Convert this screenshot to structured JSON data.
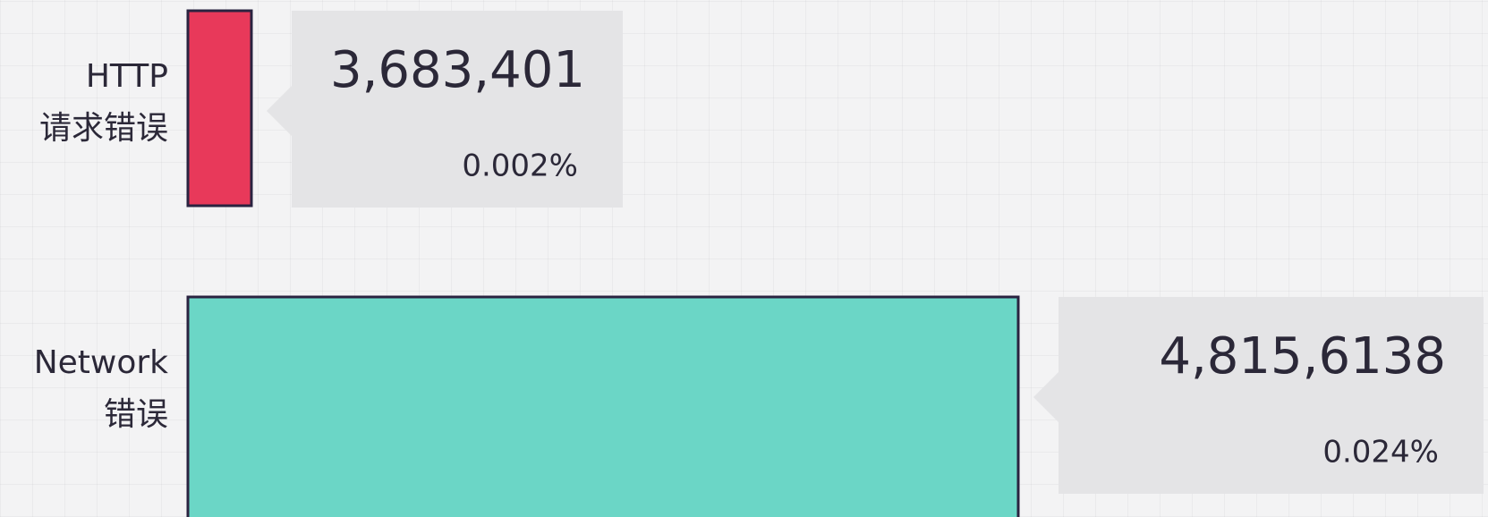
{
  "chart_data": {
    "type": "bar",
    "categories": [
      [
        "HTTP",
        "请求错误"
      ],
      [
        "Network",
        "错误"
      ]
    ],
    "values": [
      3683401,
      48156138
    ],
    "value_labels": [
      "3,683,401",
      "4,815,6138"
    ],
    "shares": [
      0.002,
      0.024
    ],
    "share_labels": [
      "0.002%",
      "0.024%"
    ],
    "colors": [
      "#e8395a",
      "#6bd6c6"
    ]
  }
}
